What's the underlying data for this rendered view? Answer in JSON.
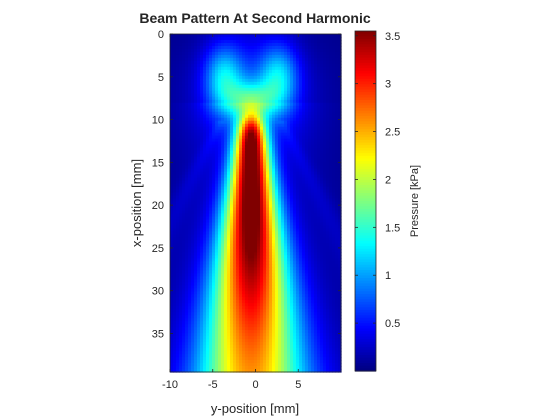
{
  "chart_data": {
    "type": "heatmap",
    "title": "Beam Pattern At Second Harmonic",
    "xlabel": "y-position [mm]",
    "ylabel": "x-position [mm]",
    "xlim": [
      -10,
      10
    ],
    "ylim": [
      0,
      39.5
    ],
    "y_direction": "reversed",
    "x_ticks": [
      -10,
      -5,
      0,
      5
    ],
    "x_tick_labels": [
      "-10",
      "-5",
      "0",
      "5"
    ],
    "y_ticks": [
      0,
      5,
      10,
      15,
      20,
      25,
      30,
      35
    ],
    "y_tick_labels": [
      "0",
      "5",
      "10",
      "15",
      "20",
      "25",
      "30",
      "35"
    ],
    "colormap": "jet",
    "color_range": [
      0,
      3.55
    ],
    "colorbar": {
      "label": "Pressure [kPa]",
      "ticks": [
        0.5,
        1,
        1.5,
        2,
        2.5,
        3,
        3.5
      ],
      "tick_labels": [
        "0.5",
        "1",
        "1.5",
        "2",
        "2.5",
        "3",
        "3.5"
      ],
      "placement": "right"
    },
    "beam": {
      "axis_y": -0.5,
      "peak_pressure_kPa": 3.55,
      "peak_depth_mm": 18,
      "focal_start_mm": 9.5,
      "near_field_lobe_depth_mm": 5,
      "near_field_lobe_offset_mm": 3.2,
      "near_field_lobe_pressure_kPa": 0.9
    },
    "grid": false
  }
}
